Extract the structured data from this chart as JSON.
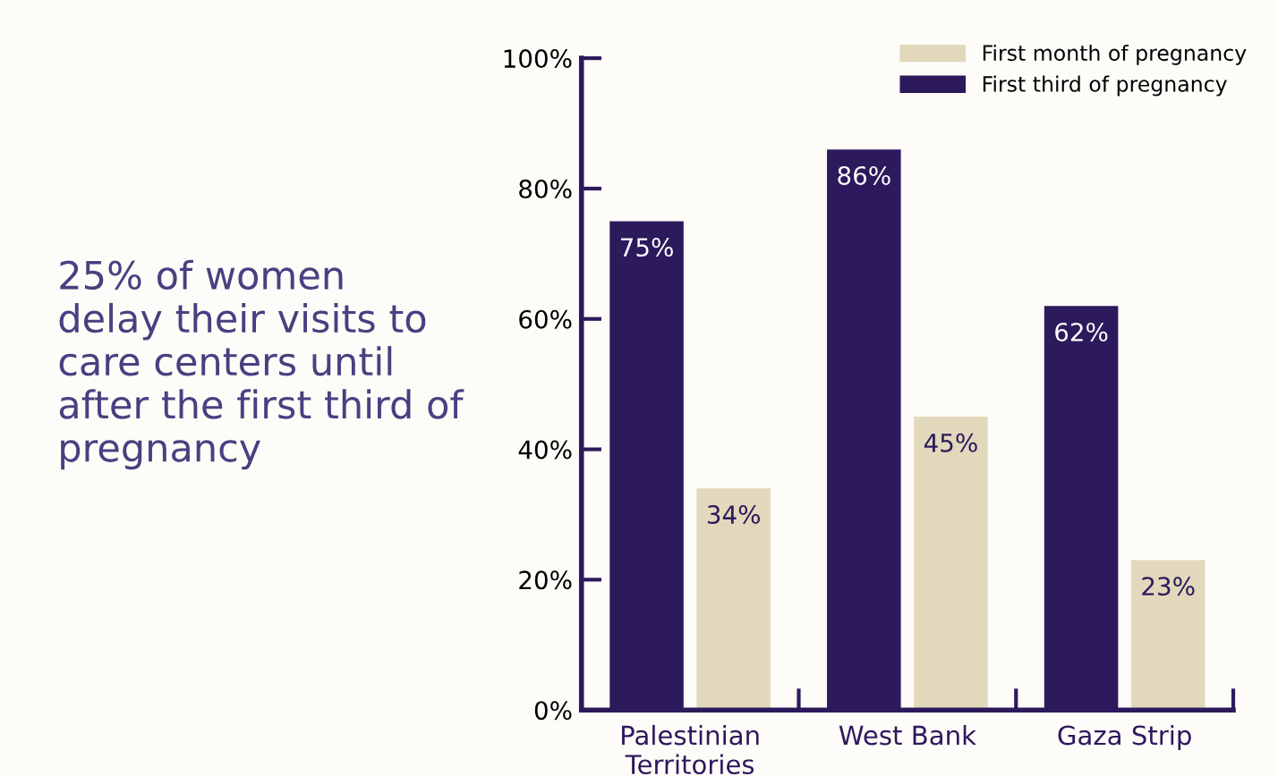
{
  "chart_data": {
    "type": "bar",
    "categories": [
      "Palestinian\nTerritories",
      "West Bank",
      "Gaza Strip"
    ],
    "series": [
      {
        "name": "First third of pregnancy",
        "color": "#2c1a5c",
        "values": [
          75,
          86,
          62
        ],
        "value_labels": [
          "75%",
          "86%",
          "62%"
        ]
      },
      {
        "name": "First month of pregnancy",
        "color": "#e2d8bc",
        "values": [
          34,
          45,
          23
        ],
        "value_labels": [
          "34%",
          "45%",
          "23%"
        ]
      }
    ],
    "ylim": [
      0,
      100
    ],
    "yticks": [
      {
        "value": 0,
        "label": "0%"
      },
      {
        "value": 20,
        "label": "20%"
      },
      {
        "value": 40,
        "label": "40%"
      },
      {
        "value": 60,
        "label": "60%"
      },
      {
        "value": 80,
        "label": "80%"
      },
      {
        "value": 100,
        "label": "100%"
      }
    ],
    "grid": false,
    "legend": "top right",
    "annotations": [
      "25% of women\ndelay their visits to\ncare centers until\nafter the first third of\npregnancy"
    ]
  }
}
